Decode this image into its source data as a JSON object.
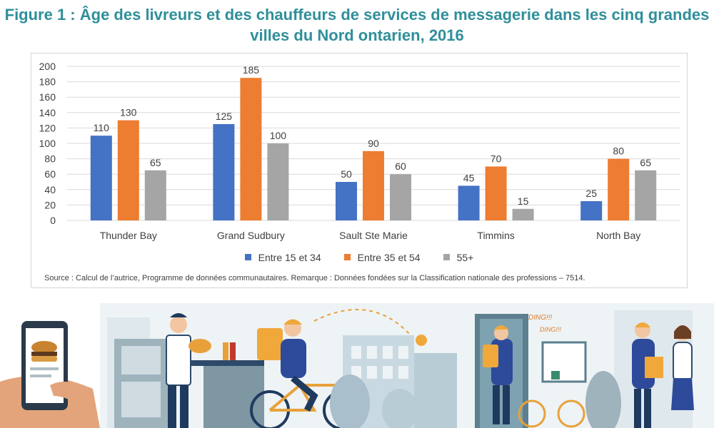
{
  "title": "Figure 1 : Âge des livreurs et des chauffeurs de services de messagerie dans les cinq grandes villes du Nord ontarien, 2016",
  "source": "Source : Calcul de l’autrice, Programme de données communautaires. Remarque : Données fondées sur la Classification nationale des professions – 7514.",
  "illustration": {
    "ding1": "DING!!!",
    "ding2": "DING!!!"
  },
  "colors": {
    "title": "#2f8f9a",
    "series1": "#4472c4",
    "series2": "#ed7d31",
    "series3": "#a5a5a5",
    "grid": "#d9d9d9"
  },
  "chart_data": {
    "type": "bar",
    "categories": [
      "Thunder Bay",
      "Grand Sudbury",
      "Sault Ste Marie",
      "Timmins",
      "North Bay"
    ],
    "series": [
      {
        "name": "Entre 15 et 34",
        "values": [
          110,
          125,
          50,
          45,
          25
        ],
        "color": "#4472c4"
      },
      {
        "name": "Entre 35 et 54",
        "values": [
          130,
          185,
          90,
          70,
          80
        ],
        "color": "#ed7d31"
      },
      {
        "name": "55+",
        "values": [
          65,
          100,
          60,
          15,
          65
        ],
        "color": "#a5a5a5"
      }
    ],
    "ylim": [
      0,
      200
    ],
    "yticks": [
      0,
      20,
      40,
      60,
      80,
      100,
      120,
      140,
      160,
      180,
      200
    ],
    "grid": true,
    "legend": "bottom",
    "data_labels": true
  }
}
